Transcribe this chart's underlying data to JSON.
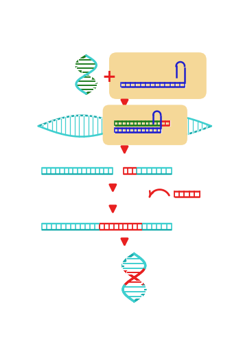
{
  "bg_color": "#ffffff",
  "cyan": "#3ECFCF",
  "dark_green": "#1A7A1A",
  "red": "#E82020",
  "blue": "#2020CC",
  "beige_fill": "#F5D898",
  "teal": "#1AADAD",
  "orange_red": "#E84020",
  "arrow_color": "#E82020",
  "fig_width": 3.54,
  "fig_height": 5.0,
  "dpi": 100
}
